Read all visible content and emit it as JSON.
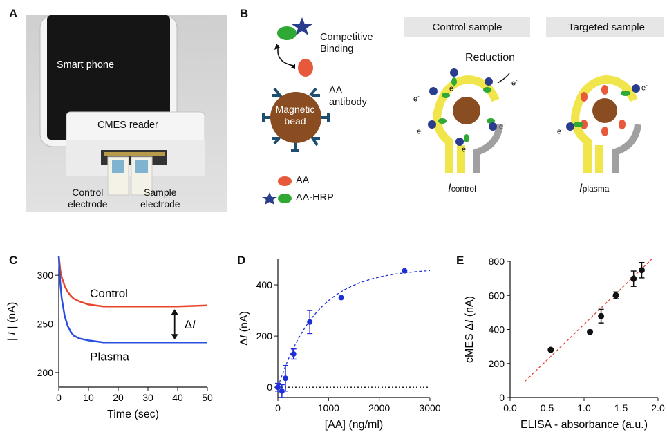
{
  "panels": {
    "a": "A",
    "b": "B",
    "c": "C",
    "d": "D",
    "e": "E"
  },
  "photo": {
    "phone_label": "Smart phone",
    "reader_label": "CMES reader",
    "control_label": [
      "Control",
      "electrode"
    ],
    "sample_label": [
      "Sample",
      "electrode"
    ]
  },
  "schematic": {
    "competitive_binding": [
      "Competitive",
      "Binding"
    ],
    "bead_label": [
      "Magnetic",
      "bead"
    ],
    "antibody_label": [
      "AA",
      "antibody"
    ],
    "legend": [
      {
        "label": "AA",
        "color": "#e8583a"
      },
      {
        "label": "AA-HRP",
        "color": "#2fa834",
        "star": "#2a3c8c"
      }
    ],
    "control_header": "Control sample",
    "targeted_header": "Targeted sample",
    "reduction": "Reduction",
    "electron": "e",
    "electron_sup": "-",
    "i_control": {
      "main": "I",
      "sub": "control"
    },
    "i_plasma": {
      "main": "I",
      "sub": "plasma"
    },
    "colors": {
      "electrode": "#f0e64c",
      "ref": "#a0a0a0",
      "bead": "#8a4d22",
      "antibody": "#1f4f6e",
      "header_bg": "#e6e6e6"
    }
  },
  "chart_data": [
    {
      "type": "line",
      "xlabel": "Time (sec)",
      "ylabel_parts": [
        "| ",
        "I",
        " | (nA)"
      ],
      "xlim": [
        0,
        50
      ],
      "ylim": [
        185,
        320
      ],
      "xticks": [
        0,
        10,
        20,
        30,
        40,
        50
      ],
      "yticks": [
        200,
        250,
        300
      ],
      "series": [
        {
          "name": "Control",
          "color": "#e8452c",
          "x": [
            0,
            0.5,
            1,
            2,
            3,
            4,
            5,
            7,
            10,
            15,
            20,
            30,
            40,
            50
          ],
          "y": [
            320,
            305,
            298,
            289,
            283,
            279,
            276,
            273,
            270,
            268,
            268,
            268,
            268,
            269
          ]
        },
        {
          "name": "Plasma",
          "color": "#2a4fe0",
          "x": [
            0,
            0.5,
            1,
            2,
            3,
            4,
            5,
            7,
            10,
            15,
            20,
            30,
            40,
            50
          ],
          "y": [
            320,
            292,
            276,
            258,
            248,
            242,
            238,
            235,
            233,
            231,
            231,
            231,
            231,
            231
          ]
        }
      ],
      "annotation": {
        "main": "ΔI",
        "prefix": "Δ",
        "italic": "I"
      }
    },
    {
      "type": "scatter",
      "xlabel": "[AA] (ng/ml)",
      "ylabel_parts": [
        "Δ",
        "I",
        " (nA)"
      ],
      "xlim": [
        0,
        3000
      ],
      "ylim": [
        -40,
        500
      ],
      "xticks": [
        0,
        1000,
        2000,
        3000
      ],
      "yticks": [
        0,
        200,
        400
      ],
      "color": "#1f2fd8",
      "points": [
        {
          "x": 0,
          "y": 0,
          "err": 15
        },
        {
          "x": 80,
          "y": -15,
          "err": 25
        },
        {
          "x": 150,
          "y": 35,
          "err": 50
        },
        {
          "x": 310,
          "y": 130,
          "err": 20
        },
        {
          "x": 630,
          "y": 255,
          "err": 45
        },
        {
          "x": 1250,
          "y": 350,
          "err": 0
        },
        {
          "x": 2500,
          "y": 455,
          "err": 0
        }
      ],
      "fit": {
        "a": 465,
        "k": 0.0013
      },
      "baseline": 0
    },
    {
      "type": "scatter",
      "xlabel": "ELISA - absorbance (a.u.)",
      "ylabel_parts": [
        "cMES Δ",
        "I",
        " (nA)"
      ],
      "xlim": [
        0,
        2.0
      ],
      "ylim": [
        0,
        800
      ],
      "xticks": [
        0.0,
        0.5,
        1.0,
        1.5,
        2.0
      ],
      "xtick_labels": [
        "0.0",
        "0.5",
        "1.0",
        "1.5",
        "2.0"
      ],
      "yticks": [
        0,
        200,
        400,
        600,
        800
      ],
      "color": "#111111",
      "points": [
        {
          "x": 0.55,
          "y": 280,
          "err": 0
        },
        {
          "x": 1.08,
          "y": 385,
          "err": 0
        },
        {
          "x": 1.23,
          "y": 478,
          "err": 40
        },
        {
          "x": 1.43,
          "y": 600,
          "err": 20
        },
        {
          "x": 1.67,
          "y": 698,
          "err": 45
        },
        {
          "x": 1.78,
          "y": 748,
          "err": 45
        }
      ],
      "fit": {
        "x": [
          0.2,
          1.92
        ],
        "y": [
          95,
          815
        ],
        "color": "#e0453a"
      }
    }
  ]
}
